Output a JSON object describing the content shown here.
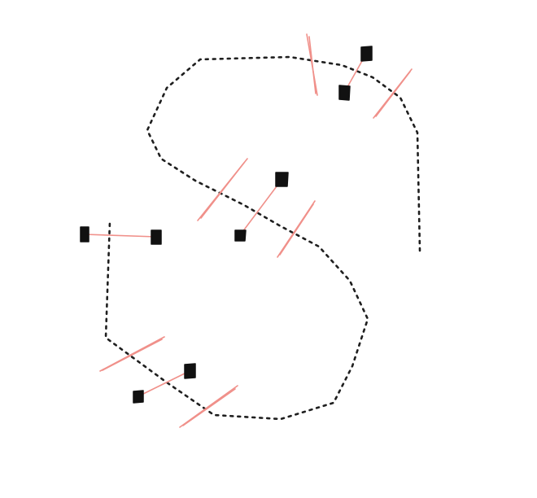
{
  "diagram": {
    "type": "hand-drawn dotted S-curve with square handles and pink guide strokes",
    "colors": {
      "background": "#ffffff",
      "curve": "#1f1f1f",
      "handle": "#111111",
      "guide": "#f0908a"
    },
    "labels": []
  }
}
